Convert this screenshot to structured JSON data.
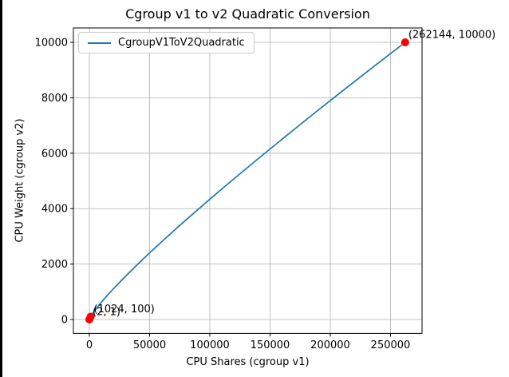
{
  "window": {
    "background_color": "#ffffff",
    "edge_strip_color": "#000000"
  },
  "chart_data": {
    "type": "line",
    "title": "Cgroup v1 to v2 Quadratic Conversion",
    "xlabel": "CPU Shares (cgroup v1)",
    "ylabel": "CPU Weight (cgroup v2)",
    "grid": true,
    "grid_color": "#b0b0b0",
    "spine_color": "#000000",
    "legend": {
      "position": "upper left",
      "entries": [
        {
          "label": "CgroupV1ToV2Quadratic",
          "color": "#1f77b4"
        }
      ]
    },
    "xlim": [
      -13245,
      276159
    ],
    "ylim": [
      -501,
      10519
    ],
    "xticks": [
      0,
      50000,
      100000,
      150000,
      200000,
      250000
    ],
    "yticks": [
      0,
      2000,
      4000,
      6000,
      8000,
      10000
    ],
    "series": [
      {
        "name": "CgroupV1ToV2Quadratic",
        "color": "#1f77b4",
        "x": [
          2,
          500,
          1024,
          2000,
          4000,
          7000,
          10000,
          15000,
          20000,
          30000,
          40000,
          50000,
          62500,
          75000,
          87500,
          100000,
          112500,
          125000,
          137500,
          150000,
          162500,
          175000,
          187500,
          200000,
          212500,
          225000,
          237500,
          250000,
          262144
        ],
        "y": [
          1,
          57,
          100,
          170,
          297,
          467,
          626,
          875,
          1112,
          1561,
          1989,
          2402,
          2903,
          3392,
          3868,
          4339,
          4802,
          5257,
          5707,
          6154,
          6595,
          7032,
          7468,
          7899,
          8326,
          8751,
          9174,
          9594,
          10000
        ]
      }
    ],
    "marker_color": "#ff0000",
    "annotated_points": [
      {
        "x": 2,
        "y": 1,
        "label": "(2, 1)"
      },
      {
        "x": 1024,
        "y": 100,
        "label": "(1024, 100)"
      },
      {
        "x": 262144,
        "y": 10000,
        "label": "(262144, 10000)"
      }
    ]
  }
}
